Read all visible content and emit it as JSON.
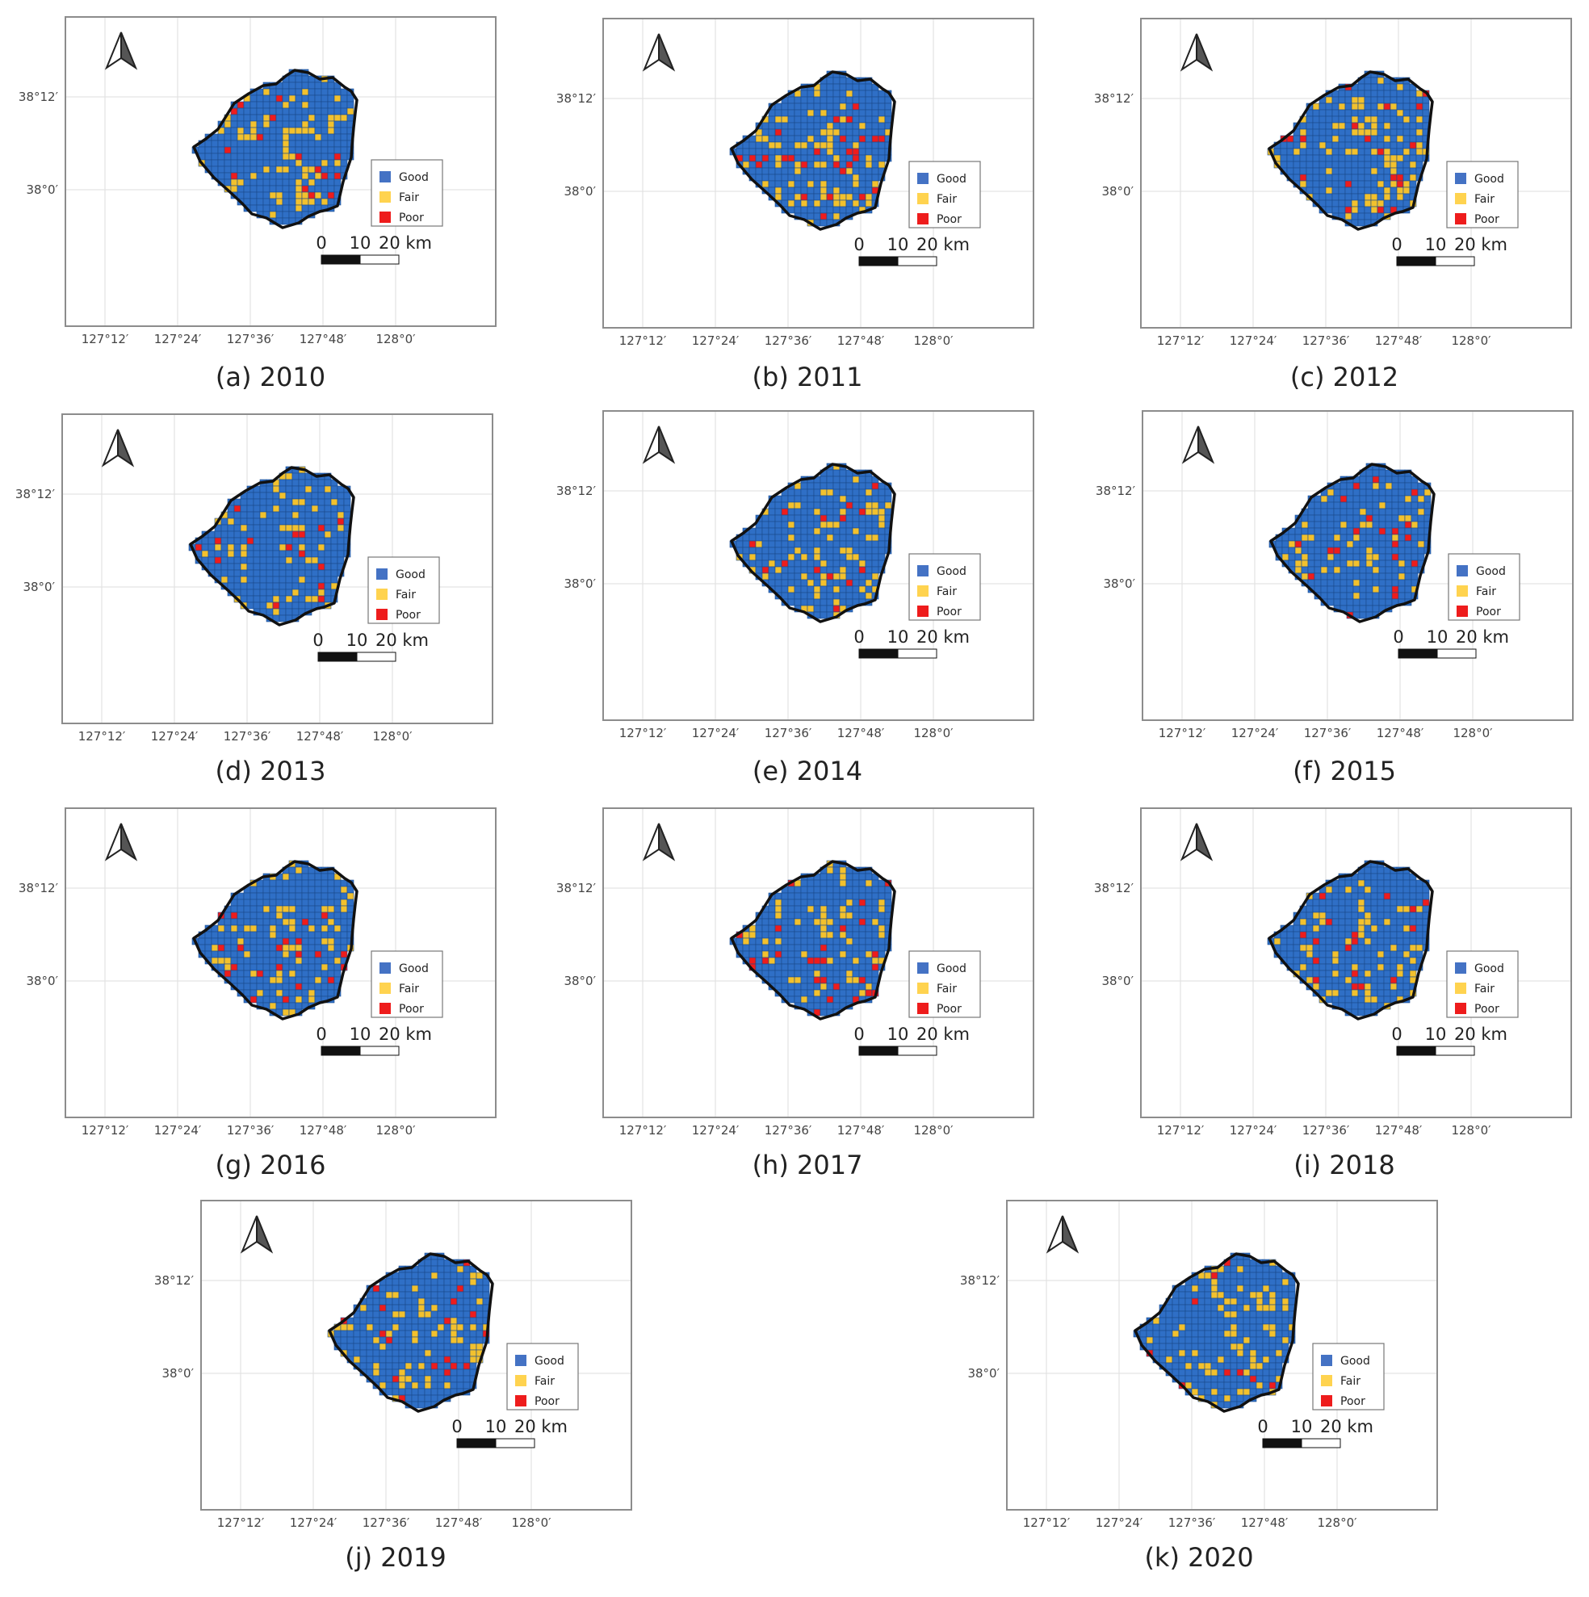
{
  "figure": {
    "panels": [
      {
        "caption": "(a) 2010",
        "year": "2010"
      },
      {
        "caption": "(b) 2011",
        "year": "2011"
      },
      {
        "caption": "(c) 2012",
        "year": "2012"
      },
      {
        "caption": "(d) 2013",
        "year": "2013"
      },
      {
        "caption": "(e) 2014",
        "year": "2014"
      },
      {
        "caption": "(f) 2015",
        "year": "2015"
      },
      {
        "caption": "(g) 2016",
        "year": "2016"
      },
      {
        "caption": "(h) 2017",
        "year": "2017"
      },
      {
        "caption": "(i) 2018",
        "year": "2018"
      },
      {
        "caption": "(j) 2019",
        "year": "2019"
      },
      {
        "caption": "(k) 2020",
        "year": "2020"
      }
    ],
    "x_tick_labels": [
      "127°12′",
      "127°24′",
      "127°36′",
      "127°48′",
      "128°0′"
    ],
    "y_tick_labels": [
      "38°12′",
      "38°0′"
    ],
    "legend": [
      {
        "label": "Good",
        "color": "#4472c4"
      },
      {
        "label": "Fair",
        "color": "#ffd34f"
      },
      {
        "label": "Poor",
        "color": "#ee1c1c"
      }
    ],
    "scale_bar": {
      "labels": [
        "0",
        "10",
        "20 km"
      ]
    },
    "icons": {
      "north_arrow": "north-arrow-icon"
    },
    "colors": {
      "grid_cell_good": "#2f6fc6",
      "grid_cell_line": "#1a4a8c",
      "boundary": "#111111",
      "frame": "#8c8c8c",
      "graticule": "#e3e3e3"
    }
  }
}
